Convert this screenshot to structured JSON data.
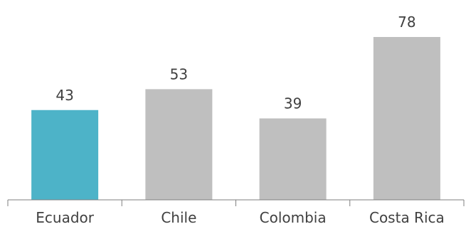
{
  "chart_data": {
    "type": "bar",
    "categories": [
      "Ecuador",
      "Chile",
      "Colombia",
      "Costa Rica"
    ],
    "values": [
      43,
      53,
      39,
      78
    ],
    "bar_colors": [
      "#4DB3C8",
      "#BFBFBF",
      "#BFBFBF",
      "#BFBFBF"
    ],
    "ylim": [
      0,
      78
    ],
    "grid": false,
    "legend": "none"
  }
}
